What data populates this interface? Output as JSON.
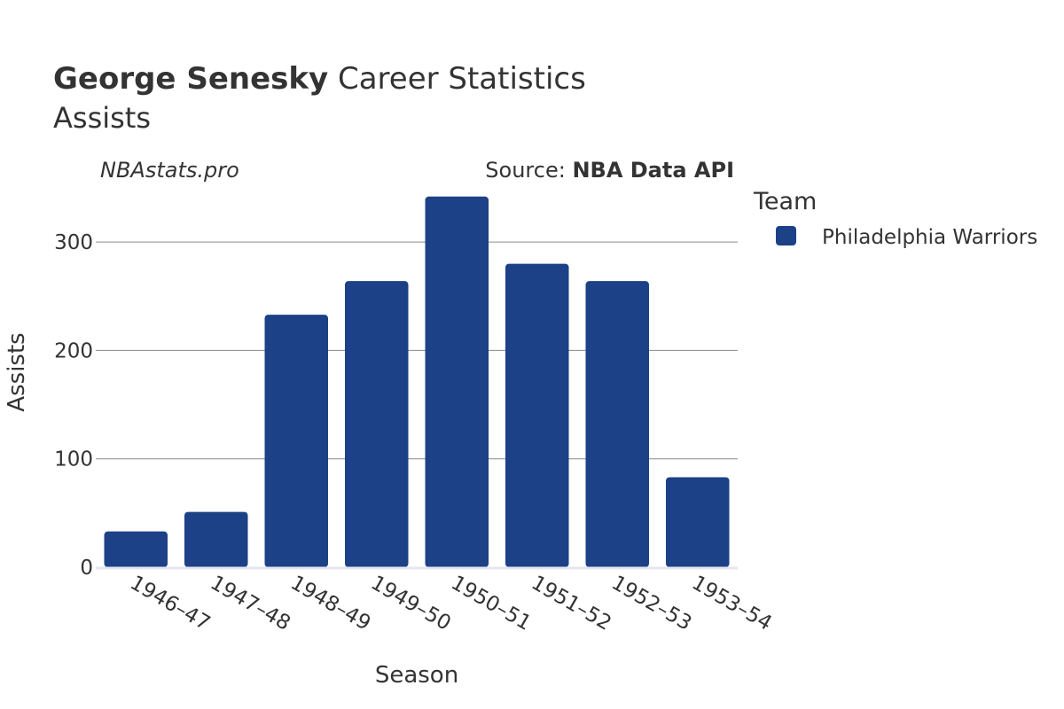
{
  "header": {
    "title_bold": "George Senesky",
    "title_rest": " Career Statistics",
    "subtitle": "Assists"
  },
  "watermark": "NBAstats.pro",
  "source": {
    "prefix": "Source: ",
    "name": "NBA Data API"
  },
  "legend": {
    "title": "Team",
    "items": [
      {
        "label": "Philadelphia Warriors",
        "color": "#1c4187"
      }
    ]
  },
  "chart_data": {
    "type": "bar",
    "xlabel": "Season",
    "ylabel": "Assists",
    "categories": [
      "1946–47",
      "1947–48",
      "1948–49",
      "1949–50",
      "1950–51",
      "1951–52",
      "1952–53",
      "1953–54"
    ],
    "series": [
      {
        "name": "Philadelphia Warriors",
        "values": [
          33,
          51,
          233,
          264,
          342,
          280,
          264,
          83
        ],
        "color": "#1c4187"
      }
    ],
    "ylim": [
      0,
      350
    ],
    "yticks": [
      0,
      100,
      200,
      300
    ],
    "grid": true,
    "legend_position": "right"
  }
}
